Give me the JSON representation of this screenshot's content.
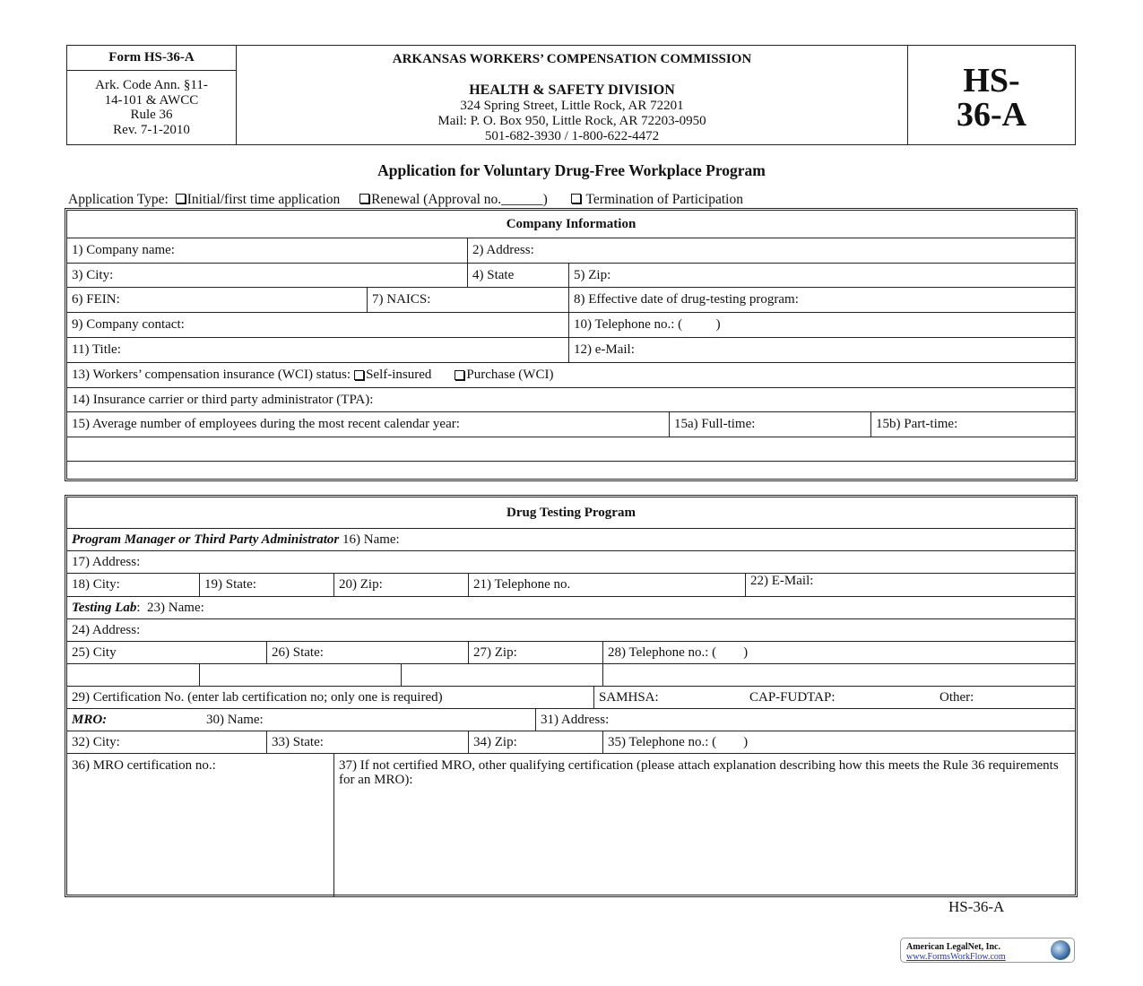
{
  "header": {
    "form_id": "Form HS-36-A",
    "code_lines": [
      "Ark. Code Ann. §11-",
      "14-101 & AWCC",
      "Rule 36",
      "Rev. 7-1-2010"
    ],
    "agency": "ARKANSAS WORKERS’ COMPENSATION COMMISSION",
    "division": "HEALTH & SAFETY DIVISION",
    "address": "324 Spring Street, Little Rock, AR 72201",
    "mail": "Mail:  P. O. Box 950, Little Rock, AR 72203-0950",
    "phones": "501-682-3930 / 1-800-622-4472",
    "badge_line1": "HS-",
    "badge_line2": "36-A"
  },
  "title": "Application for Voluntary Drug-Free Workplace Program",
  "app_type": {
    "label": "Application Type:",
    "options": [
      "Initial/first time application",
      "Renewal (Approval no.______)",
      "Termination of  Participation"
    ]
  },
  "company": {
    "heading": "Company Information",
    "f1": "1) Company name:",
    "f2": "2) Address:",
    "f3": "3) City:",
    "f4": "4) State",
    "f5": "5) Zip:",
    "f6": "6) FEIN:",
    "f7": "7) NAICS:",
    "f8": "8) Effective date of drug-testing program:",
    "f9": "9) Company contact:",
    "f10": "10) Telephone no.: (          )",
    "f11": "11) Title:",
    "f12": "12) e-Mail:",
    "f13": "13) Workers’ compensation insurance (WCI) status:",
    "f13a": "Self-insured",
    "f13b": "Purchase (WCI)",
    "f14": "14) Insurance carrier or third party administrator (TPA):",
    "f15": "15) Average number of employees during the most recent calendar year:",
    "f15a": "15a) Full-time:",
    "f15b": "15b) Part-time:"
  },
  "drug": {
    "heading": "Drug Testing Program",
    "pm_label": "Program Manager or Third Party Administrator",
    "f16": "16) Name:",
    "f17": "17) Address:",
    "f18": "18) City:",
    "f19": "19) State:",
    "f20": "20) Zip:",
    "f21": "21) Telephone no.",
    "f22": "22) E-Mail:",
    "lab_label": "Testing Lab",
    "f23": ":  23) Name:",
    "f24": "24) Address:",
    "f25": "25) City",
    "f26": "26) State:",
    "f27": "27) Zip:",
    "f28": "28) Telephone no.: (        )",
    "f29": "29) Certification No. (enter lab certification no; only one is required)",
    "samhsa": "SAMHSA:",
    "cap": "CAP-FUDTAP:",
    "other": "Other:",
    "mro_label": "MRO:",
    "f30": "30) Name:",
    "f31": "31) Address:",
    "f32": "32) City:",
    "f33": "33) State:",
    "f34": "34) Zip:",
    "f35": "35) Telephone no.: (        )",
    "f36": "36) MRO certification no.:",
    "f37": "37) If not certified MRO, other qualifying certification (please attach explanation describing how this meets the Rule 36 requirements for an MRO):"
  },
  "footer": {
    "form_id": "HS-36-A",
    "logo_name": "American LegalNet, Inc.",
    "logo_url": "www.FormsWorkFlow.com"
  }
}
